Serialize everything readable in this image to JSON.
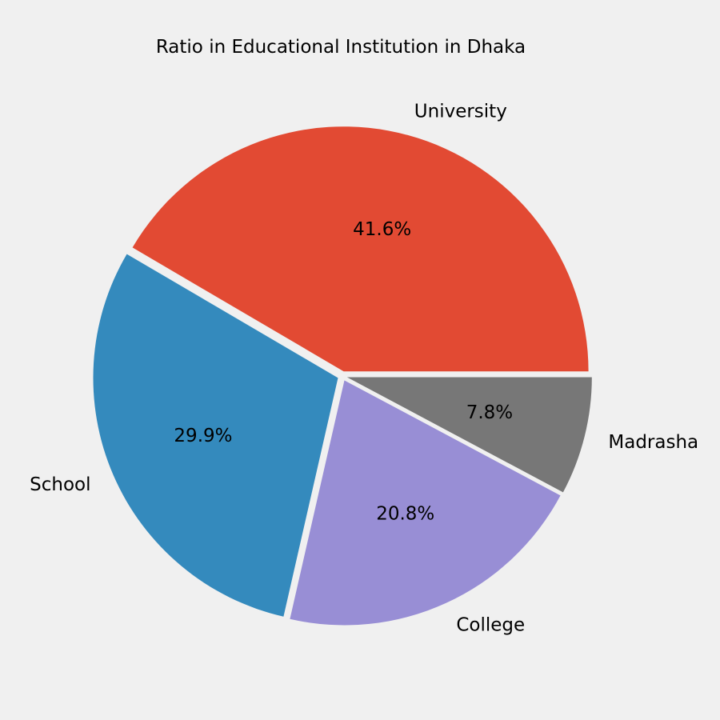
{
  "chart_data": {
    "type": "pie",
    "title": "Ratio in Educational Institution in Dhaka",
    "slices": [
      {
        "label": "University",
        "value": 41.6,
        "pct_label": "41.6%",
        "color": "#e24a33"
      },
      {
        "label": "School",
        "value": 29.9,
        "pct_label": "29.9%",
        "color": "#348abd"
      },
      {
        "label": "College",
        "value": 20.8,
        "pct_label": "20.8%",
        "color": "#988ed5"
      },
      {
        "label": "Madrasha",
        "value": 7.8,
        "pct_label": "7.8%",
        "color": "#777777"
      }
    ],
    "background_color": "#f0f0f0",
    "legend": "none",
    "grid": false
  }
}
